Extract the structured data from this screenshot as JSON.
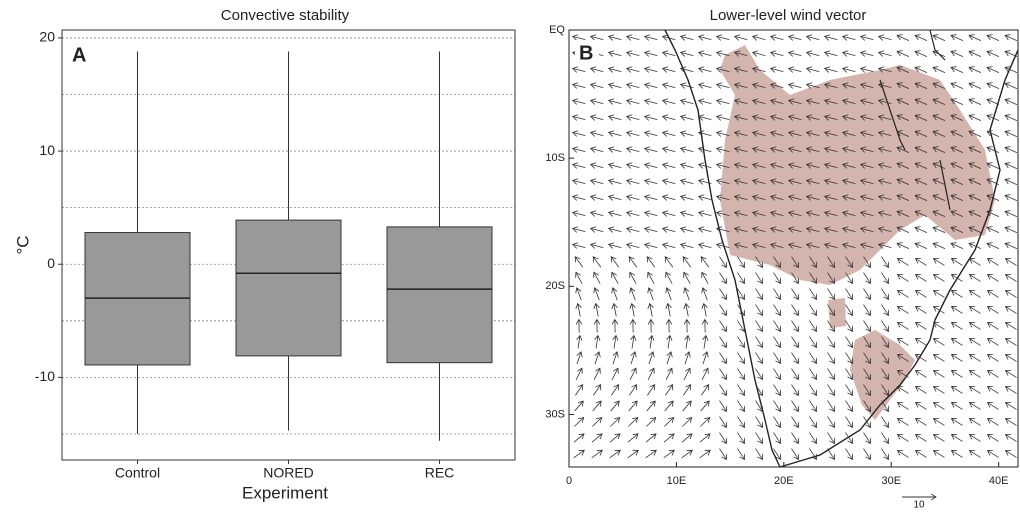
{
  "chart_data": [
    {
      "type": "box",
      "title": "Convective stability",
      "panel": "A",
      "x_label": "Experiment",
      "y_label": "°C",
      "categories": [
        "Control",
        "NORED",
        "REC"
      ],
      "color": "#999999",
      "boxes": [
        {
          "whislo": -15.0,
          "q1": -8.9,
          "med": -3.0,
          "q3": 2.8,
          "whishi": 18.8
        },
        {
          "whislo": -14.7,
          "q1": -8.1,
          "med": -0.8,
          "q3": 3.9,
          "whishi": 18.8
        },
        {
          "whislo": -15.6,
          "q1": -8.7,
          "med": -2.2,
          "q3": 3.3,
          "whishi": 18.8
        }
      ],
      "ylim": [
        -17.3,
        20.7
      ],
      "yticks": [
        -10,
        0,
        10,
        20
      ],
      "minor_yticks": [
        -15,
        -5,
        5,
        15
      ],
      "grid": true
    },
    {
      "type": "map",
      "title": "Lower-level wind vector",
      "panel": "B",
      "xlim": [
        0,
        41.8
      ],
      "ylim": [
        -34.1,
        0
      ],
      "xticks": [
        0,
        {
          "value": 10,
          "label": "10E"
        },
        {
          "value": 20,
          "label": "20E"
        },
        {
          "value": 30,
          "label": "30E"
        },
        {
          "value": 40,
          "label": "40E"
        }
      ],
      "yticks": [
        {
          "value": 0,
          "label": "EQ"
        },
        {
          "value": -10,
          "label": "10S"
        },
        {
          "value": -20,
          "label": "20S"
        },
        {
          "value": -30,
          "label": "30S"
        }
      ],
      "reference_vector": 10,
      "shade_color": "#d4b5ae"
    }
  ]
}
